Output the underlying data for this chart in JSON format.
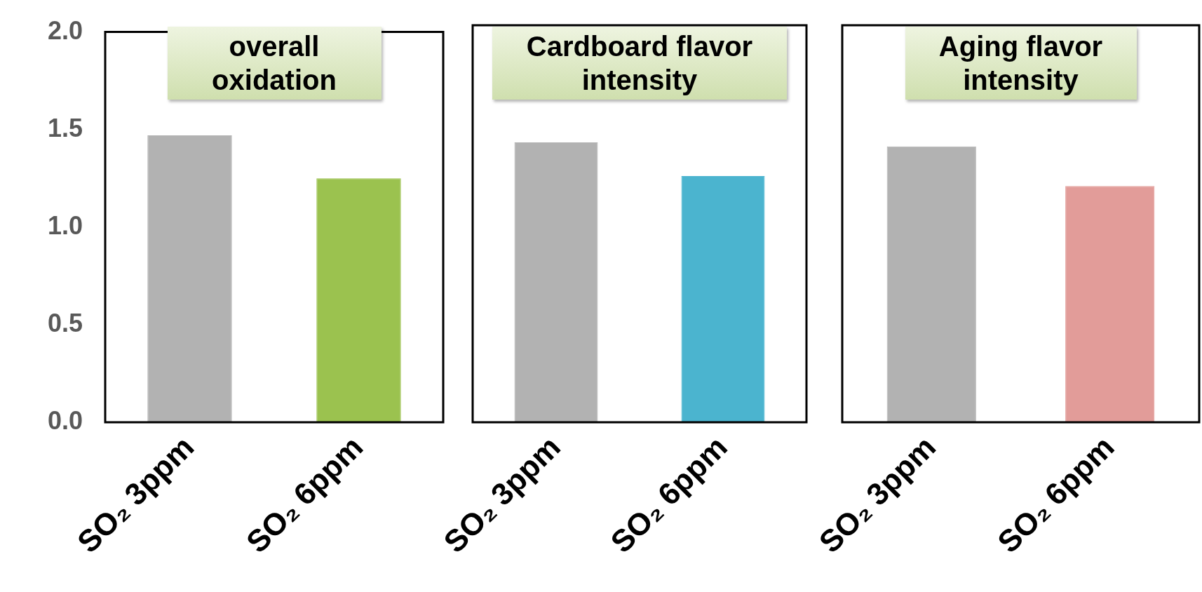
{
  "chart_data": [
    {
      "type": "bar",
      "title": "overall oxidation",
      "categories": [
        "SO₂ 3ppm",
        "SO₂ 6ppm"
      ],
      "values": [
        1.47,
        1.25
      ],
      "colors": [
        "#b2b2b2",
        "#9bc24f"
      ],
      "ylim": [
        0,
        2
      ],
      "yticks": [
        {
          "value": 0,
          "label": "0.0"
        },
        {
          "value": 0.5,
          "label": "0.5"
        },
        {
          "value": 1,
          "label": "1.0"
        },
        {
          "value": 1.5,
          "label": "1.5"
        },
        {
          "value": 2,
          "label": "2.0"
        }
      ]
    },
    {
      "type": "bar",
      "title": "Cardboard flavor intensity",
      "categories": [
        "SO₂ 3ppm",
        "SO₂ 6ppm"
      ],
      "values": [
        1.41,
        1.24
      ],
      "colors": [
        "#b2b2b2",
        "#4bb4cf"
      ],
      "ylim": [
        0,
        2
      ],
      "tick_labels": "x"
    },
    {
      "type": "bar",
      "title": "Aging flavor intensity",
      "categories": [
        "SO₂ 3ppm",
        "SO₂ 6ppm"
      ],
      "values": [
        1.39,
        1.19
      ],
      "colors": [
        "#b2b2b2",
        "#e29c99"
      ],
      "ylim": [
        0,
        2
      ],
      "tick_labels": "x"
    }
  ]
}
